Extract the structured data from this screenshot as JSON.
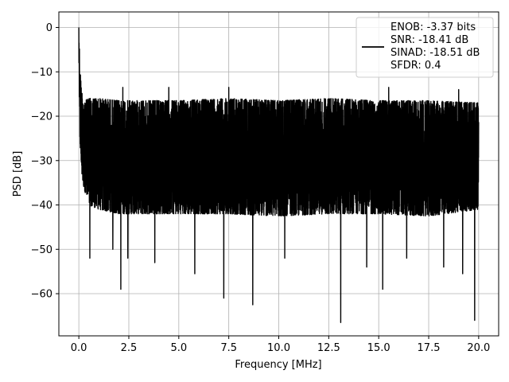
{
  "chart_data": {
    "type": "line",
    "title": "",
    "xlabel": "Frequency [MHz]",
    "ylabel": "PSD [dB]",
    "xlim": [
      -1.0,
      21.0
    ],
    "ylim": [
      -69.5,
      3.5
    ],
    "x_ticks": [
      0.0,
      2.5,
      5.0,
      7.5,
      10.0,
      12.5,
      15.0,
      17.5,
      20.0
    ],
    "x_tick_labels": [
      "0.0",
      "2.5",
      "5.0",
      "7.5",
      "10.0",
      "12.5",
      "15.0",
      "17.5",
      "20.0"
    ],
    "y_ticks": [
      0,
      -10,
      -20,
      -30,
      -40,
      -50,
      -60
    ],
    "y_tick_labels": [
      "0",
      "−10",
      "−20",
      "−30",
      "−40",
      "−50",
      "−60"
    ],
    "grid": true,
    "legend_position": "top-right",
    "series": [
      {
        "color": "#000000",
        "legend_lines": [
          "ENOB: -3.37 bits",
          "SNR: -18.41 dB",
          "SINAD: -18.51 dB",
          "SFDR: 0.4"
        ],
        "envelope": {
          "x": [
            0.0,
            0.02,
            0.05,
            0.1,
            0.15,
            0.2,
            0.3,
            0.5,
            1.0,
            2.0,
            3.0,
            5.0,
            7.5,
            10.0,
            12.5,
            15.0,
            17.5,
            20.0
          ],
          "upper": [
            0.0,
            -3.0,
            -8.0,
            -12.0,
            -14.5,
            -15.5,
            -16.5,
            -16.0,
            -16.0,
            -16.5,
            -16.5,
            -16.5,
            -16.0,
            -16.5,
            -16.0,
            -16.5,
            -16.5,
            -17.0
          ],
          "lower": [
            -5.0,
            -18.0,
            -25.0,
            -30.0,
            -33.0,
            -35.0,
            -37.0,
            -40.0,
            -41.0,
            -42.0,
            -42.0,
            -42.0,
            -42.0,
            -42.5,
            -42.0,
            -42.0,
            -42.5,
            -41.0
          ]
        },
        "dips": [
          {
            "x": 0.55,
            "y": -52.0
          },
          {
            "x": 1.7,
            "y": -50.0
          },
          {
            "x": 2.1,
            "y": -59.0
          },
          {
            "x": 2.45,
            "y": -52.0
          },
          {
            "x": 3.8,
            "y": -53.0
          },
          {
            "x": 5.8,
            "y": -55.5
          },
          {
            "x": 7.25,
            "y": -61.0
          },
          {
            "x": 8.7,
            "y": -62.5
          },
          {
            "x": 10.3,
            "y": -52.0
          },
          {
            "x": 13.1,
            "y": -66.5
          },
          {
            "x": 14.4,
            "y": -54.0
          },
          {
            "x": 15.2,
            "y": -59.0
          },
          {
            "x": 16.4,
            "y": -52.0
          },
          {
            "x": 18.25,
            "y": -54.0
          },
          {
            "x": 19.2,
            "y": -55.5
          },
          {
            "x": 19.8,
            "y": -66.0
          }
        ],
        "peaks": [
          {
            "x": 0.0,
            "y": 0.0
          },
          {
            "x": 2.2,
            "y": -13.5
          },
          {
            "x": 4.5,
            "y": -13.5
          },
          {
            "x": 7.5,
            "y": -13.5
          },
          {
            "x": 15.5,
            "y": -13.5
          },
          {
            "x": 19.0,
            "y": -14.0
          }
        ]
      }
    ]
  }
}
